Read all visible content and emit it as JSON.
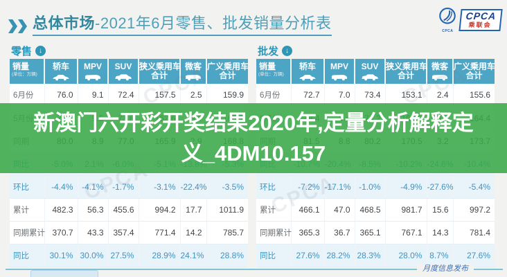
{
  "header": {
    "title_strong": "总体市场",
    "title_rest": "-2021年6月零售、批发销量分析表"
  },
  "logo": {
    "emblem_caption": "CPCA",
    "text": "CPCA",
    "caption": "乘联会"
  },
  "tables": {
    "retail": {
      "label": "零售",
      "columns": [
        {
          "name": "销量",
          "sub": "(单位：万辆)"
        },
        {
          "name": "轿车",
          "icon": "sedan-icon"
        },
        {
          "name": "MPV",
          "icon": "mpv-icon"
        },
        {
          "name": "SUV",
          "icon": "suv-icon"
        },
        {
          "name": "狭义乘用车",
          "name2": "合计"
        },
        {
          "name": "微客",
          "icon": "minibus-icon"
        },
        {
          "name": "广义乘用车",
          "name2": "合计"
        }
      ],
      "rows": [
        {
          "label": "6月份",
          "type": "num",
          "values": [
            "76.0",
            "9.1",
            "72.4",
            "157.5",
            "2.5",
            "159.9"
          ]
        },
        {
          "label": "5月份",
          "type": "num",
          "values": [
            "79.5",
            "9.5",
            "73.6",
            "162.6",
            "3.2",
            "165.7"
          ]
        },
        {
          "label": "同期",
          "type": "num",
          "values": [
            "80.0",
            "8.9",
            "77.0",
            "165.9",
            "2.9",
            "168.8"
          ]
        },
        {
          "label": "同比",
          "type": "pct",
          "values": [
            "-5.0%",
            "2.1%",
            "-6.0%",
            "-5.1%",
            "-13.8%",
            "-5.3%"
          ]
        },
        {
          "label": "环比",
          "type": "pct",
          "values": [
            "-4.4%",
            "-4.1%",
            "-1.7%",
            "-3.1%",
            "-22.4%",
            "-3.5%"
          ]
        },
        {
          "label": "累计",
          "type": "num",
          "values": [
            "482.3",
            "56.3",
            "455.6",
            "994.2",
            "17.7",
            "1011.9"
          ]
        },
        {
          "label": "同期累计",
          "type": "num",
          "values": [
            "370.7",
            "43.3",
            "357.4",
            "771.4",
            "14.2",
            "785.7"
          ]
        },
        {
          "label": "同比",
          "type": "pct",
          "values": [
            "30.1%",
            "30.0%",
            "27.5%",
            "28.9%",
            "24.1%",
            "28.8%"
          ]
        }
      ]
    },
    "wholesale": {
      "label": "批发",
      "columns": [
        {
          "name": "销量",
          "sub": "(单位：万辆)"
        },
        {
          "name": "轿车",
          "icon": "sedan-icon"
        },
        {
          "name": "MPV",
          "icon": "mpv-icon"
        },
        {
          "name": "SUV",
          "icon": "suv-icon"
        },
        {
          "name": "狭义乘用车",
          "name2": "合计"
        },
        {
          "name": "微客",
          "icon": "minibus-icon"
        },
        {
          "name": "广义乘用车",
          "name2": "合计"
        }
      ],
      "rows": [
        {
          "label": "6月份",
          "type": "num",
          "values": [
            "72.7",
            "7.0",
            "73.4",
            "153.1",
            "2.4",
            "155.6"
          ]
        },
        {
          "label": "5月份",
          "type": "num",
          "values": [
            "78.4",
            "8.4",
            "74.2",
            "161.0",
            "3.4",
            "164.4"
          ]
        },
        {
          "label": "同期",
          "type": "num",
          "values": [
            "81.5",
            "8.8",
            "80.2",
            "170.5",
            "3.2",
            "173.7"
          ]
        },
        {
          "label": "同比",
          "type": "pct",
          "values": [
            "-10.7%",
            "-20.4%",
            "-8.5%",
            "-10.2%",
            "-24.6%",
            "-10.4%"
          ]
        },
        {
          "label": "环比",
          "type": "pct",
          "values": [
            "-7.2%",
            "-17.1%",
            "-1.0%",
            "-4.9%",
            "-27.6%",
            "-5.4%"
          ]
        },
        {
          "label": "累计",
          "type": "num",
          "values": [
            "466.1",
            "47.0",
            "468.5",
            "981.7",
            "15.6",
            "997.2"
          ]
        },
        {
          "label": "同期累计",
          "type": "num",
          "values": [
            "365.3",
            "36.7",
            "365.1",
            "767.1",
            "14.3",
            "781.4"
          ]
        },
        {
          "label": "同比",
          "type": "pct",
          "values": [
            "27.6%",
            "28.2%",
            "28.3%",
            "28.0%",
            "8.7%",
            "27.6%"
          ]
        }
      ]
    }
  },
  "overlay": {
    "lines": [
      "新澳门六开彩开奖结果2020年,定量分析解释定",
      "义_4DM10.157"
    ],
    "full_text": "新澳门六开彩开奖结果2020年,定量分析解释定义_4DM10.157"
  },
  "footer": {
    "text": "月度信息发布"
  },
  "watermark": {
    "text": "CPCA"
  },
  "colors": {
    "accent_teal": "#2e96b6",
    "title_teal": "#4d9fba",
    "table_header_bg": "#4da5c5",
    "percent_blue": "#3f93bf",
    "overlay_green": "#3aa848",
    "logo_blue": "#2264b2",
    "logo_red": "#c2372d"
  }
}
